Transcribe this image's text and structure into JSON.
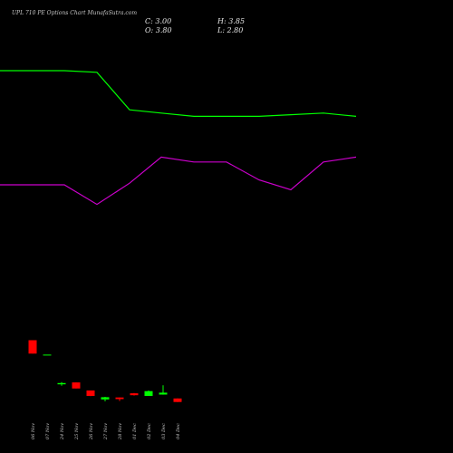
{
  "header": {
    "title": "UPL 710 PE Options Chart MunafaSutra.com",
    "close_label": "C: 3.00",
    "open_label": "O: 3.80",
    "high_label": "H: 3.85",
    "low_label": "L: 2.80"
  },
  "chart_data": {
    "type": "candlestick",
    "title": "UPL 710 PE Options Chart MunafaSutra.com",
    "categories": [
      "06 Nov",
      "07 Nov",
      "24 Nov",
      "25 Nov",
      "26 Nov",
      "27 Nov",
      "28 Nov",
      "01 Dec",
      "02 Dec",
      "03 Dec",
      "04 Dec"
    ],
    "candles": [
      {
        "open": 14.5,
        "high": 14.5,
        "low": 10.3,
        "close": 10.3,
        "color": "#ff0000"
      },
      {
        "open": 10.0,
        "high": 10.0,
        "low": 10.0,
        "close": 10.0,
        "color": "#00ff00"
      },
      {
        "open": 0.7,
        "high": 1.4,
        "low": 0.3,
        "close": 1.1,
        "color": "#00ff00"
      },
      {
        "open": 1.3,
        "high": 1.3,
        "low": -0.6,
        "close": -0.6,
        "color": "#ff0000"
      },
      {
        "open": -1.2,
        "high": -1.2,
        "low": -3.0,
        "close": -2.9,
        "color": "#ff0000"
      },
      {
        "open": -4.0,
        "high": -3.2,
        "low": -4.6,
        "close": -3.3,
        "color": "#00ff00"
      },
      {
        "open": -3.4,
        "high": -3.4,
        "low": -4.5,
        "close": -3.9,
        "color": "#ff0000"
      },
      {
        "open": -2.1,
        "high": -2.0,
        "low": -2.8,
        "close": -2.7,
        "color": "#ff0000"
      },
      {
        "open": -2.9,
        "high": -1.2,
        "low": -2.9,
        "close": -1.4,
        "color": "#00ff00"
      },
      {
        "open": -2.5,
        "high": 0.4,
        "low": -2.5,
        "close": -1.9,
        "color": "#00ff00"
      },
      {
        "open": -3.7,
        "high": -3.7,
        "low": -4.8,
        "close": -4.8,
        "color": "#ff0000"
      }
    ],
    "series": [
      {
        "color": "#00ff00",
        "values": [
          100,
          100,
          99,
          76,
          74,
          72,
          72,
          72,
          73,
          74,
          72
        ]
      },
      {
        "color": "#cc00cc",
        "values": [
          30,
          30,
          18,
          31,
          47,
          44,
          44,
          33,
          27,
          44,
          47
        ]
      }
    ],
    "price_ylim": [
      -8,
      50
    ],
    "indicator_ylim": [
      0,
      100
    ],
    "grid": false,
    "legend": "none",
    "colors": {
      "background": "#000000",
      "up": "#00ff00",
      "down": "#ff0000",
      "text": "#c8c8c8"
    }
  }
}
